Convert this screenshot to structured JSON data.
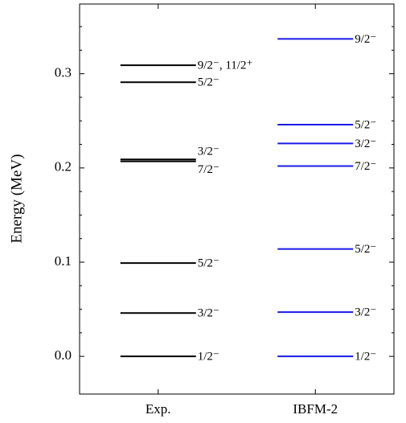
{
  "chart_data": {
    "type": "level",
    "y_label": "Energy (MeV)",
    "ylim": [
      -0.04,
      0.374
    ],
    "yticks": [
      {
        "value": 0,
        "label": "0.0"
      },
      0.1,
      0.2,
      0.3
    ],
    "yticks_minor": [
      0.025,
      0.05,
      0.075,
      0.125,
      0.15,
      0.175,
      0.225,
      0.25,
      0.275,
      0.325,
      0.35
    ],
    "series": [
      {
        "name": "Exp.",
        "color": "#000000",
        "values": [
          0.0,
          0.046,
          0.099,
          0.207,
          0.209,
          0.291,
          0.309
        ],
        "level_labels": [
          "1/2⁻",
          "3/2⁻",
          "5/2⁻",
          "7/2⁻",
          "3/2⁻",
          "5/2⁻",
          "9/2⁻, 11/2⁺"
        ]
      },
      {
        "name": "IBFM-2",
        "color": "#1a1ae6",
        "values": [
          0.0,
          0.047,
          0.114,
          0.202,
          0.226,
          0.246,
          0.337
        ],
        "level_labels": [
          "1/2⁻",
          "3/2⁻",
          "5/2⁻",
          "7/2⁻",
          "3/2⁻",
          "5/2⁻",
          "9/2⁻"
        ]
      }
    ]
  }
}
